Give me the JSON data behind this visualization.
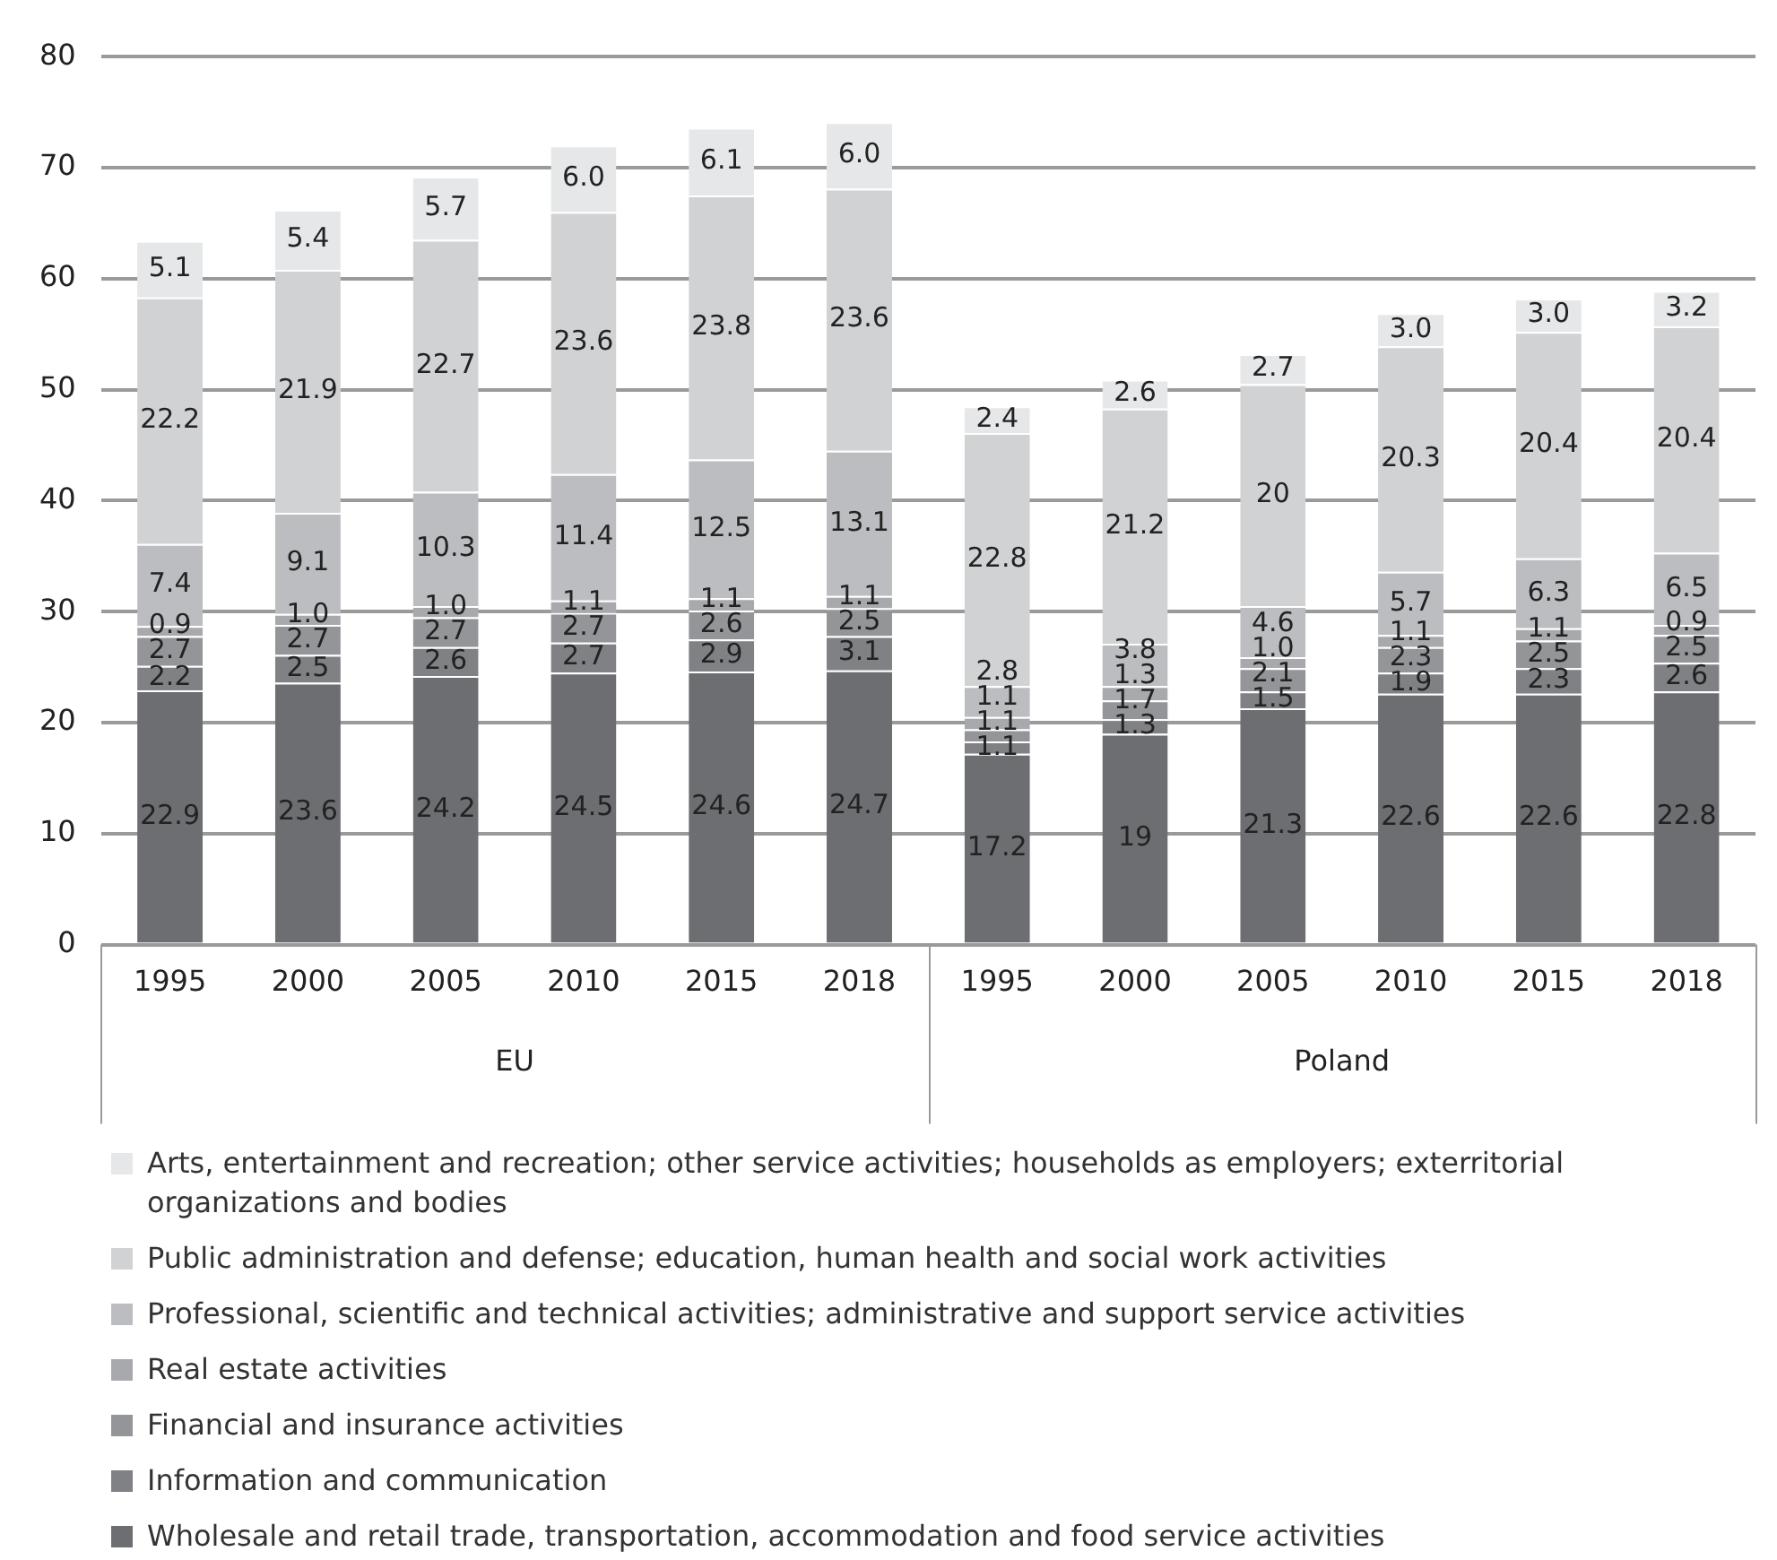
{
  "chart_data": {
    "type": "bar",
    "stacked": true,
    "categories": [
      "1995",
      "2000",
      "2005",
      "2010",
      "2015",
      "2018",
      "1995",
      "2000",
      "2005",
      "2010",
      "2015",
      "2018"
    ],
    "annotations": [
      "EU",
      "Poland"
    ],
    "series": [
      {
        "name": "Wholesale and retail trade, transportation, accommodation and food service activities",
        "color": "#6d6e71",
        "values": [
          22.9,
          23.6,
          24.2,
          24.5,
          24.6,
          24.7,
          17.2,
          19,
          21.3,
          22.6,
          22.6,
          22.8
        ],
        "value_labels": [
          "22.9",
          "23.6",
          "24.2",
          "24.5",
          "24.6",
          "24.7",
          "17.2",
          "19",
          "21.3",
          "22.6",
          "22.6",
          "22.8"
        ]
      },
      {
        "name": "Information and communication",
        "color": "#808184",
        "values": [
          2.2,
          2.5,
          2.6,
          2.7,
          2.9,
          3.1,
          1.1,
          1.3,
          1.5,
          1.9,
          2.3,
          2.6
        ],
        "value_labels": [
          "2.2",
          "2.5",
          "2.6",
          "2.7",
          "2.9",
          "3.1",
          "1.1",
          "1.3",
          "1.5",
          "1.9",
          "2.3",
          "2.6"
        ]
      },
      {
        "name": "Financial and insurance activities",
        "color": "#949598",
        "values": [
          2.7,
          2.7,
          2.7,
          2.7,
          2.6,
          2.5,
          1.1,
          1.7,
          2.1,
          2.3,
          2.5,
          2.5
        ],
        "value_labels": [
          "2.7",
          "2.7",
          "2.7",
          "2.7",
          "2.6",
          "2.5",
          "1.1",
          "1.7",
          "2.1",
          "2.3",
          "2.5",
          "2.5"
        ]
      },
      {
        "name": "Real estate activities",
        "color": "#a8a9ac",
        "values": [
          0.9,
          1.0,
          1.0,
          1.1,
          1.1,
          1.1,
          1.1,
          1.3,
          1.0,
          1.1,
          1.1,
          0.9
        ],
        "value_labels": [
          "0.9",
          "1.0",
          "1.0",
          "1.1",
          "1.1",
          "1.1",
          "1.1",
          "1.3",
          "1.0",
          "1.1",
          "1.1",
          "0.9"
        ]
      },
      {
        "name": "Professional, scientific and technical activities; administrative and support service activities",
        "color": "#bcbdc0",
        "values": [
          7.4,
          9.1,
          10.3,
          11.4,
          12.5,
          13.1,
          2.8,
          3.8,
          4.6,
          5.7,
          6.3,
          6.5
        ],
        "value_labels": [
          "7.4",
          "9.1",
          "10.3",
          "11.4",
          "12.5",
          "13.1",
          "2.8",
          "3.8",
          "4.6",
          "5.7",
          "6.3",
          "6.5"
        ]
      },
      {
        "name": "Public administration and defense; education, human health and social work activities",
        "color": "#d1d2d4",
        "values": [
          22.2,
          21.9,
          22.7,
          23.6,
          23.8,
          23.6,
          22.8,
          21.2,
          20,
          20.3,
          20.4,
          20.4
        ],
        "value_labels": [
          "22.2",
          "21.9",
          "22.7",
          "23.6",
          "23.8",
          "23.6",
          "22.8",
          "21.2",
          "20",
          "20.3",
          "20.4",
          "20.4"
        ]
      },
      {
        "name": "Arts, entertainment and recreation; other service activities; households as employers; exterritorial organizations and bodies",
        "color": "#e6e7e8",
        "values": [
          5.1,
          5.4,
          5.7,
          6.0,
          6.1,
          6.0,
          2.4,
          2.6,
          2.7,
          3.0,
          3.0,
          3.2
        ],
        "value_labels": [
          "5.1",
          "5.4",
          "5.7",
          "6.0",
          "6.1",
          "6.0",
          "2.4",
          "2.6",
          "2.7",
          "3.0",
          "3.0",
          "3.2"
        ]
      }
    ],
    "ylim": [
      0,
      80
    ],
    "yticks": [
      0,
      10,
      20,
      30,
      40,
      50,
      60,
      70,
      80
    ],
    "grid": "y",
    "legend": "bottom"
  }
}
